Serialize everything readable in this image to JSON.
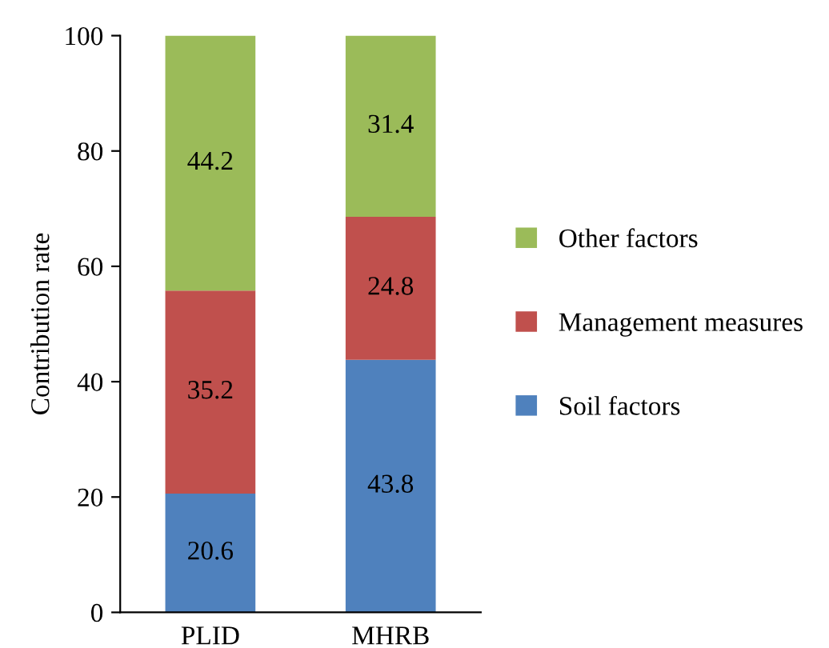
{
  "chart_data": {
    "type": "bar",
    "stacked": true,
    "ylabel": "Contribution rate",
    "categories": [
      "PLID",
      "MHRB"
    ],
    "series": [
      {
        "name": "Soil factors",
        "color": "#4f81bd",
        "values": [
          20.6,
          43.8
        ]
      },
      {
        "name": "Management measures",
        "color": "#c0504d",
        "values": [
          35.2,
          24.8
        ]
      },
      {
        "name": "Other factors",
        "color": "#9bbb59",
        "values": [
          44.2,
          31.4
        ]
      }
    ],
    "ylim": [
      0,
      100
    ],
    "yticks": [
      0,
      20,
      40,
      60,
      80,
      100
    ],
    "data_labels": true,
    "legend": "right",
    "grid": false
  }
}
